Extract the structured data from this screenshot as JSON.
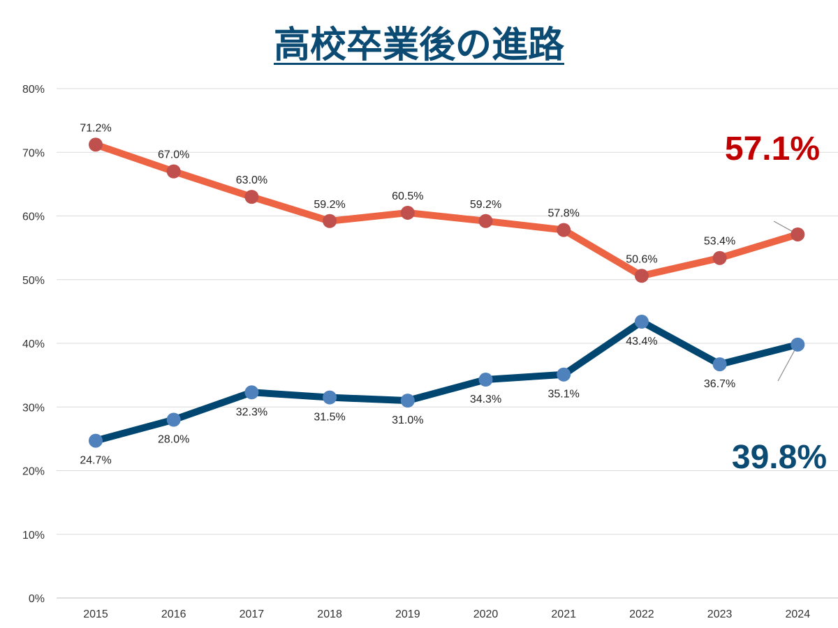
{
  "chart_data": {
    "type": "line",
    "title": "高校卒業後の進路",
    "categories": [
      "2015",
      "2016",
      "2017",
      "2018",
      "2019",
      "2020",
      "2021",
      "2022",
      "2023",
      "2024"
    ],
    "ylim": [
      0,
      80
    ],
    "yticks": [
      "0%",
      "10%",
      "20%",
      "30%",
      "40%",
      "50%",
      "60%",
      "70%",
      "80%"
    ],
    "grid": true,
    "series": [
      {
        "values": [
          71.2,
          67.0,
          63.0,
          59.2,
          60.5,
          59.2,
          57.8,
          50.6,
          53.4,
          57.1
        ],
        "labels": [
          "71.2%",
          "67.0%",
          "63.0%",
          "59.2%",
          "60.5%",
          "59.2%",
          "57.8%",
          "50.6%",
          "53.4%",
          ""
        ],
        "line_color": "#ec6443",
        "marker_color": "#c0504d",
        "label_position": "above"
      },
      {
        "values": [
          24.7,
          28.0,
          32.3,
          31.5,
          31.0,
          34.3,
          35.1,
          43.4,
          36.7,
          39.8
        ],
        "labels": [
          "24.7%",
          "28.0%",
          "32.3%",
          "31.5%",
          "31.0%",
          "34.3%",
          "35.1%",
          "43.4%",
          "36.7%",
          ""
        ],
        "line_color": "#004670",
        "marker_color": "#4f81bd",
        "label_position": "below"
      }
    ],
    "annotations": {
      "upper_last": {
        "text": "57.1%",
        "color": "#c00000"
      },
      "lower_last": {
        "text": "39.8%",
        "color": "#0a4a73"
      }
    }
  }
}
